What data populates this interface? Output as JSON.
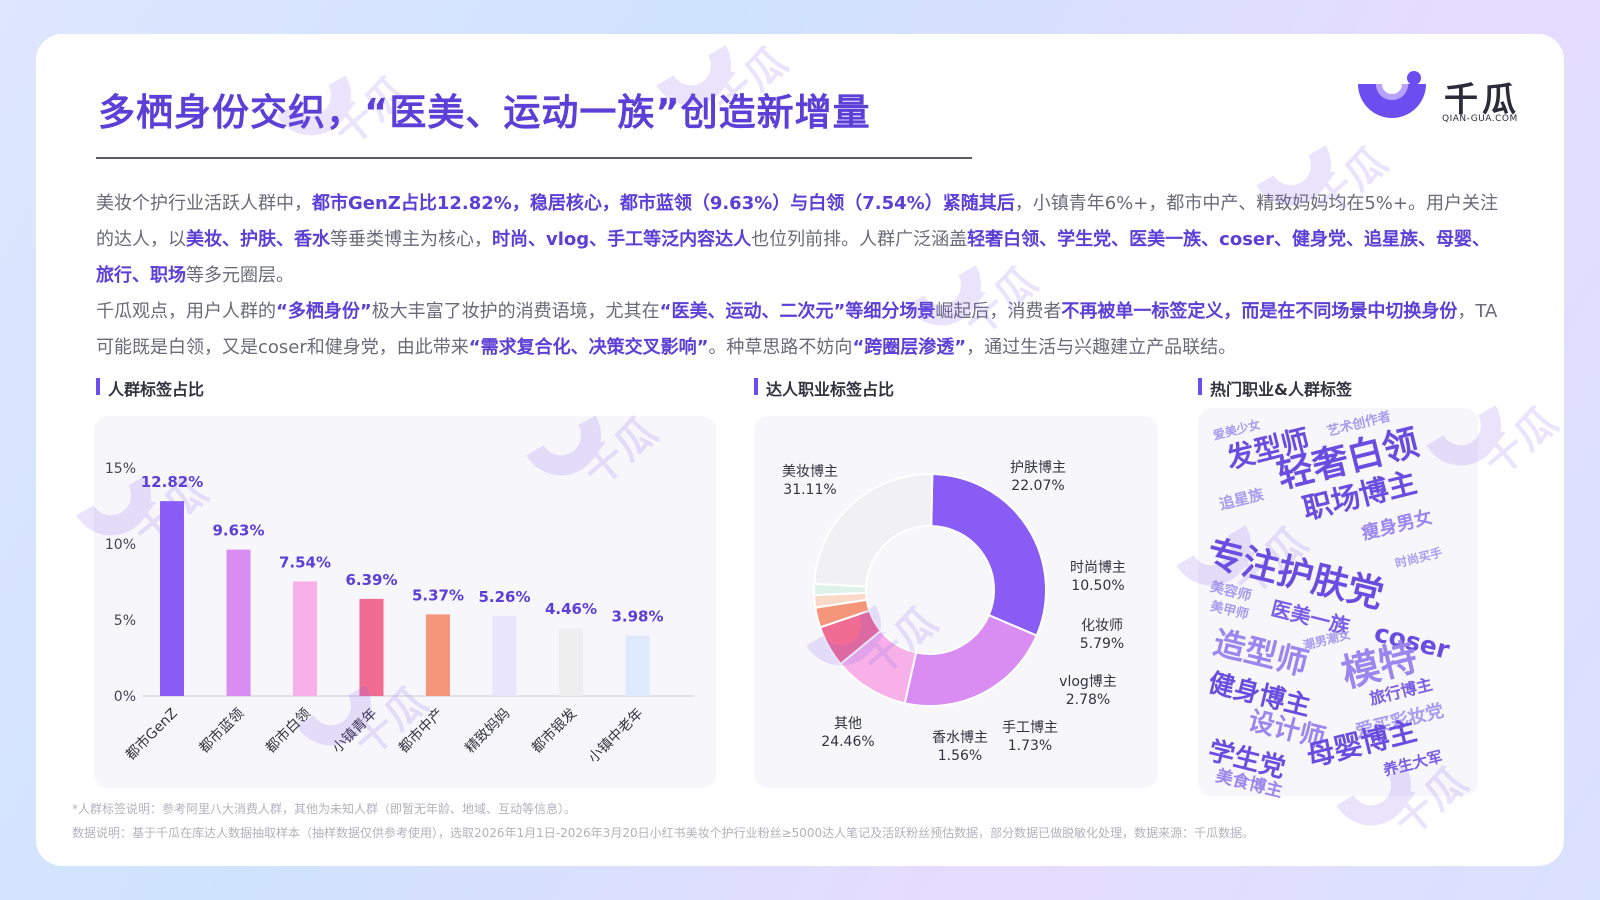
{
  "title": "多栖身份交织，“医美、运动一族”创造新增量",
  "logo": {
    "name": "千瓜",
    "domain": "QIAN-GUA.COM"
  },
  "paragraph1": [
    {
      "t": "美妆个护行业活跃人群中，",
      "h": false
    },
    {
      "t": "都市GenZ占比12.82%，稳居核心，都市蓝领（9.63%）与白领（7.54%）紧随其后",
      "h": true
    },
    {
      "t": "，小镇青年6%+，都市中产、精致妈妈均在5%+。用户关注的达人，以",
      "h": false
    },
    {
      "t": "美妆、护肤、香水",
      "h": true
    },
    {
      "t": "等垂类博主为核心，",
      "h": false
    },
    {
      "t": "时尚、vlog、手工等泛内容达人",
      "h": true
    },
    {
      "t": "也位列前排。人群广泛涵盖",
      "h": false
    },
    {
      "t": "轻奢白领、学生党、医美一族、coser、健身党、追星族、母婴、旅行、职场",
      "h": true
    },
    {
      "t": "等多元圈层。",
      "h": false
    }
  ],
  "paragraph2": [
    {
      "t": "千瓜观点，用户人群的",
      "h": false
    },
    {
      "t": "“多栖身份”",
      "h": true
    },
    {
      "t": "极大丰富了妆护的消费语境，尤其在",
      "h": false
    },
    {
      "t": "“医美、运动、二次元”等细分场景",
      "h": true
    },
    {
      "t": "崛起后，消费者",
      "h": false
    },
    {
      "t": "不再被单一标签定义，而是在不同场景中切换身份",
      "h": true
    },
    {
      "t": "，TA可能既是白领，又是coser和健身党，由此带来",
      "h": false
    },
    {
      "t": "“需求复合化、决策交叉影响”",
      "h": true
    },
    {
      "t": "。种草思路不妨向",
      "h": false
    },
    {
      "t": "“跨圈层渗透”",
      "h": true
    },
    {
      "t": "，通过生活与兴趣建立产品联结。",
      "h": false
    }
  ],
  "sections": {
    "bar_title": "人群标签占比",
    "donut_title": "达人职业标签占比",
    "cloud_title": "热门职业&人群标签"
  },
  "chart_data": [
    {
      "type": "bar",
      "title": "人群标签占比",
      "categories": [
        "都市GenZ",
        "都市蓝领",
        "都市白领",
        "小镇青年",
        "都市中产",
        "精致妈妈",
        "都市银发",
        "小镇中老年"
      ],
      "values": [
        12.82,
        9.63,
        7.54,
        6.39,
        5.37,
        5.26,
        4.46,
        3.98
      ],
      "value_labels": [
        "12.82%",
        "9.63%",
        "7.54%",
        "6.39%",
        "5.37%",
        "5.26%",
        "4.46%",
        "3.98%"
      ],
      "colors": [
        "#8a5cf6",
        "#d98cf2",
        "#f7b0e8",
        "#f06c93",
        "#f5967a",
        "#e9e6fb",
        "#eeeeef",
        "#deeafb"
      ],
      "ylim": [
        0,
        15
      ],
      "yticks": [
        0,
        5,
        10,
        15
      ],
      "ytick_labels": [
        "0%",
        "5%",
        "10%",
        "15%"
      ]
    },
    {
      "type": "pie",
      "title": "达人职业标签占比",
      "labels": [
        "美妆博主",
        "护肤博主",
        "时尚博主",
        "化妆师",
        "vlog博主",
        "手工博主",
        "香水博主",
        "其他"
      ],
      "values": [
        31.11,
        22.07,
        10.5,
        5.79,
        2.78,
        1.73,
        1.56,
        24.46
      ],
      "value_labels": [
        "31.11%",
        "22.07%",
        "10.50%",
        "5.79%",
        "2.78%",
        "1.73%",
        "1.56%",
        "24.46%"
      ],
      "colors": [
        "#8a5cf6",
        "#d98cf2",
        "#f7b0e8",
        "#f06c93",
        "#f5967a",
        "#fbd9c8",
        "#dff2ea",
        "#f1f1f3"
      ]
    }
  ],
  "word_cloud": [
    {
      "text": "爱美少女",
      "color": "#a99bf0"
    },
    {
      "text": "艺术创作者",
      "color": "#a99bf0"
    },
    {
      "text": "发型师",
      "color": "#6a4de0"
    },
    {
      "text": "轻奢白领",
      "color": "#6a4de0"
    },
    {
      "text": "追星族",
      "color": "#a99bf0"
    },
    {
      "text": "职场博主",
      "color": "#6a4de0"
    },
    {
      "text": "瘦身男女",
      "color": "#9a86ee"
    },
    {
      "text": "专注护肤党",
      "color": "#6a4de0"
    },
    {
      "text": "时尚买手",
      "color": "#a99bf0"
    },
    {
      "text": "美容师",
      "color": "#a99bf0"
    },
    {
      "text": "美甲师",
      "color": "#a99bf0"
    },
    {
      "text": "医美一族",
      "color": "#7a5ee6"
    },
    {
      "text": "coser",
      "color": "#6a4de0"
    },
    {
      "text": "造型师",
      "color": "#9a86ee"
    },
    {
      "text": "潮男潮女",
      "color": "#a99bf0"
    },
    {
      "text": "模特",
      "color": "#9a86ee"
    },
    {
      "text": "健身博主",
      "color": "#6a4de0"
    },
    {
      "text": "旅行博主",
      "color": "#7a5ee6"
    },
    {
      "text": "设计师",
      "color": "#9a86ee"
    },
    {
      "text": "爱买彩妆党",
      "color": "#a99bf0"
    },
    {
      "text": "学生党",
      "color": "#6a4de0"
    },
    {
      "text": "母婴博主",
      "color": "#6a4de0"
    },
    {
      "text": "美食博主",
      "color": "#9a86ee"
    },
    {
      "text": "养生大军",
      "color": "#7a5ee6"
    }
  ],
  "notes": {
    "note1": "*人群标签说明：参考阿里八大消费人群，其他为未知人群（即暂无年龄、地域、互动等信息）。",
    "note2": "数据说明：基于千瓜在库达人数据抽取样本（抽样数据仅供参考使用），选取2026年1月1日-2026年3月20日小红书美妆个护行业粉丝≥5000达人笔记及活跃粉丝预估数据，部分数据已做脱敏化处理，数据来源：千瓜数据。"
  },
  "colors": {
    "accent": "#5b3fd6"
  }
}
